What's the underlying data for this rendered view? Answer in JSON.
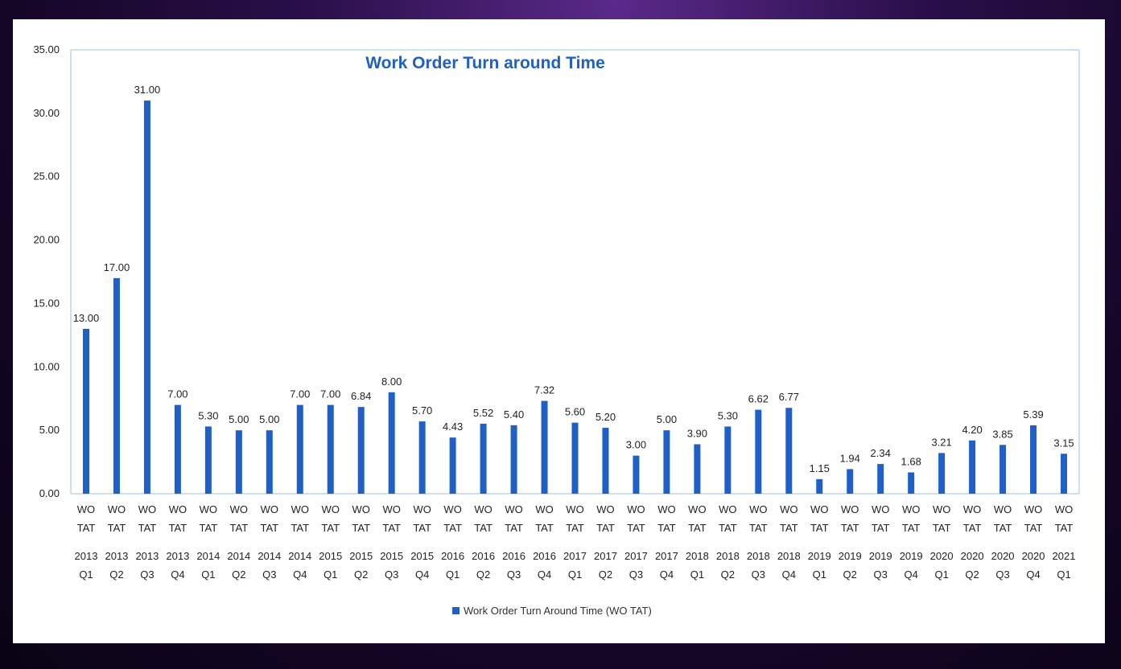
{
  "chart_data": {
    "type": "bar",
    "title": "Work Order Turn around Time",
    "xlabel": "",
    "ylabel": "",
    "ylim": [
      0,
      35
    ],
    "yticks": [
      "0.00",
      "5.00",
      "10.00",
      "15.00",
      "20.00",
      "25.00",
      "30.00",
      "35.00"
    ],
    "category_top_label": "WO TAT",
    "categories": [
      "2013 Q1",
      "2013 Q2",
      "2013 Q3",
      "2013 Q4",
      "2014 Q1",
      "2014 Q2",
      "2014 Q3",
      "2014 Q4",
      "2015 Q1",
      "2015 Q2",
      "2015 Q3",
      "2015 Q4",
      "2016 Q1",
      "2016 Q2",
      "2016 Q3",
      "2016 Q4",
      "2017 Q1",
      "2017 Q2",
      "2017 Q3",
      "2017 Q4",
      "2018 Q1",
      "2018 Q2",
      "2018 Q3",
      "2018 Q4",
      "2019 Q1",
      "2019 Q2",
      "2019 Q3",
      "2019 Q4",
      "2020 Q1",
      "2020 Q2",
      "2020 Q3",
      "2020 Q4",
      "2021 Q1"
    ],
    "series": [
      {
        "name": "Work Order Turn Around Time (WO TAT)",
        "color": "#1f5fc8",
        "values": [
          13.0,
          17.0,
          31.0,
          7.0,
          5.3,
          5.0,
          5.0,
          7.0,
          7.0,
          6.84,
          8.0,
          5.7,
          4.43,
          5.52,
          5.4,
          7.32,
          5.6,
          5.2,
          3.0,
          5.0,
          3.9,
          5.3,
          6.62,
          6.77,
          1.15,
          1.94,
          2.34,
          1.68,
          3.21,
          4.2,
          3.85,
          5.39,
          3.15
        ],
        "labels": [
          "13.00",
          "17.00",
          "31.00",
          "7.00",
          "5.30",
          "5.00",
          "5.00",
          "7.00",
          "7.00",
          "6.84",
          "8.00",
          "5.70",
          "4.43",
          "5.52",
          "5.40",
          "7.32",
          "5.60",
          "5.20",
          "3.00",
          "5.00",
          "3.90",
          "5.30",
          "6.62",
          "6.77",
          "1.15",
          "1.94",
          "2.34",
          "1.68",
          "3.21",
          "4.20",
          "3.85",
          "5.39",
          "3.15"
        ]
      }
    ],
    "grid": false,
    "legend_position": "bottom-center",
    "colors": {
      "title": "#1f5fc8",
      "axis_line": "#9cc3e6",
      "text": "#222222"
    }
  }
}
